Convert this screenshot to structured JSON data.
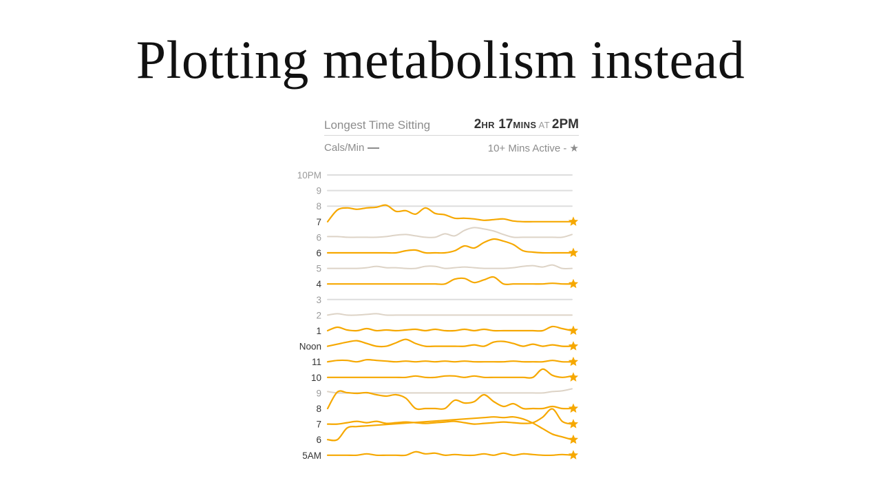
{
  "slide": {
    "title": "Plotting metabolism instead"
  },
  "header": {
    "longest_label": "Longest Time Sitting",
    "longest_value_hr": "2",
    "longest_unit_hr": "HR",
    "longest_value_min": "17",
    "longest_unit_min": "MINS",
    "longest_at": "AT",
    "longest_time": "2PM",
    "cals_label": "Cals/Min",
    "active_label": "10+ Mins Active -",
    "active_star": "★"
  },
  "colors": {
    "active": "#f6a800",
    "inactive": "#ddd3c6",
    "empty": "#dddddd",
    "grid_label_muted": "#9a9a9a",
    "grid_label_dark": "#333333"
  },
  "chart_data": {
    "type": "line",
    "title": "",
    "xlabel": "",
    "ylabel": "",
    "note": "",
    "x": [
      0,
      4,
      8,
      12,
      16,
      20,
      24,
      28,
      32,
      36,
      40,
      44,
      48,
      52,
      56,
      60,
      64,
      68,
      72,
      76,
      80,
      84,
      88,
      92,
      96,
      100
    ],
    "series": [
      {
        "label": "10PM",
        "status": "empty",
        "star": false,
        "values": [
          0,
          0,
          0,
          0,
          0,
          0,
          0,
          0,
          0,
          0,
          0,
          0,
          0,
          0,
          0,
          0,
          0,
          0,
          0,
          0,
          0,
          0,
          0,
          0,
          0,
          0
        ]
      },
      {
        "label": "9",
        "status": "empty",
        "star": false,
        "values": [
          0,
          0,
          0,
          0,
          0,
          0,
          0,
          0,
          0,
          0,
          0,
          0,
          0,
          0,
          0,
          0,
          0,
          0,
          0,
          0,
          0,
          0,
          0,
          0,
          0,
          0
        ]
      },
      {
        "label": "8",
        "status": "empty",
        "star": false,
        "values": [
          0,
          0,
          0,
          0,
          0,
          0,
          0,
          0,
          0,
          0,
          0,
          0,
          0,
          0,
          0,
          0,
          0,
          0,
          0,
          0,
          0,
          0,
          0,
          0,
          0,
          0
        ]
      },
      {
        "label": "7",
        "status": "active",
        "star": true,
        "values": [
          0,
          17,
          20,
          18,
          20,
          21,
          24,
          15,
          16,
          11,
          20,
          12,
          10,
          5,
          5,
          4,
          2,
          3,
          4,
          1,
          0,
          0,
          0,
          0,
          0,
          0
        ]
      },
      {
        "label": "6",
        "status": "inactive",
        "star": false,
        "values": [
          1,
          1,
          0,
          0,
          0,
          0,
          1,
          3,
          4,
          2,
          0,
          0,
          5,
          2,
          10,
          14,
          12,
          9,
          4,
          0,
          0,
          0,
          0,
          0,
          0,
          4
        ]
      },
      {
        "label": "6",
        "status": "active",
        "star": true,
        "values": [
          0,
          0,
          0,
          0,
          0,
          0,
          0,
          0,
          3,
          4,
          0,
          0,
          0,
          3,
          10,
          7,
          15,
          20,
          17,
          12,
          3,
          1,
          0,
          0,
          0,
          0
        ]
      },
      {
        "label": "5",
        "status": "inactive",
        "star": false,
        "values": [
          0,
          0,
          0,
          0,
          1,
          3,
          1,
          1,
          0,
          0,
          3,
          3,
          0,
          1,
          2,
          1,
          0,
          0,
          0,
          1,
          3,
          4,
          2,
          5,
          0,
          0
        ]
      },
      {
        "label": "4",
        "status": "active",
        "star": true,
        "values": [
          0,
          0,
          0,
          0,
          0,
          0,
          0,
          0,
          0,
          0,
          0,
          0,
          0,
          7,
          8,
          2,
          6,
          10,
          0,
          0,
          0,
          0,
          0,
          1,
          0,
          0
        ]
      },
      {
        "label": "3",
        "status": "empty",
        "star": false,
        "values": [
          0,
          0,
          0,
          0,
          0,
          0,
          0,
          0,
          0,
          0,
          0,
          0,
          0,
          0,
          0,
          0,
          0,
          0,
          0,
          0,
          0,
          0,
          0,
          0,
          0,
          0
        ]
      },
      {
        "label": "2",
        "status": "inactive",
        "star": false,
        "values": [
          0,
          2,
          0,
          0,
          1,
          2,
          0,
          0,
          0,
          0,
          0,
          0,
          0,
          0,
          0,
          0,
          0,
          0,
          0,
          0,
          0,
          0,
          0,
          0,
          0,
          0
        ]
      },
      {
        "label": "1",
        "status": "active",
        "star": true,
        "values": [
          0,
          5,
          1,
          0,
          3,
          0,
          1,
          0,
          1,
          2,
          0,
          2,
          0,
          0,
          2,
          0,
          2,
          0,
          0,
          0,
          0,
          0,
          0,
          6,
          3,
          0
        ]
      },
      {
        "label": "Noon",
        "status": "active",
        "star": true,
        "values": [
          0,
          3,
          6,
          8,
          4,
          0,
          0,
          5,
          10,
          4,
          0,
          0,
          0,
          0,
          0,
          2,
          0,
          6,
          7,
          4,
          0,
          3,
          0,
          2,
          0,
          0
        ]
      },
      {
        "label": "11",
        "status": "active",
        "star": true,
        "values": [
          0,
          2,
          2,
          0,
          3,
          2,
          1,
          0,
          1,
          0,
          1,
          0,
          1,
          0,
          1,
          0,
          0,
          0,
          0,
          1,
          0,
          0,
          0,
          2,
          0,
          0
        ]
      },
      {
        "label": "10",
        "status": "active",
        "star": true,
        "values": [
          0,
          0,
          0,
          0,
          0,
          0,
          0,
          0,
          0,
          2,
          0,
          0,
          2,
          2,
          0,
          2,
          0,
          0,
          0,
          0,
          0,
          0,
          12,
          3,
          0,
          2
        ]
      },
      {
        "label": "9",
        "status": "inactive",
        "star": false,
        "values": [
          2,
          0,
          0,
          0,
          0,
          0,
          0,
          0,
          0,
          0,
          0,
          0,
          0,
          0,
          0,
          0,
          0,
          0,
          0,
          0,
          0,
          0,
          0,
          2,
          3,
          6
        ]
      },
      {
        "label": "8",
        "status": "active",
        "star": true,
        "values": [
          0,
          24,
          23,
          22,
          23,
          20,
          18,
          20,
          15,
          0,
          0,
          0,
          0,
          12,
          8,
          10,
          20,
          10,
          3,
          7,
          0,
          0,
          0,
          3,
          0,
          0
        ]
      },
      {
        "label": "7",
        "status": "active",
        "star": true,
        "values": [
          0,
          0,
          2,
          4,
          2,
          4,
          1,
          2,
          3,
          2,
          1,
          2,
          3,
          4,
          2,
          0,
          1,
          2,
          3,
          2,
          1,
          2,
          10,
          22,
          4,
          0
        ]
      },
      {
        "label": "6",
        "status": "active",
        "star": true,
        "values": [
          0,
          0,
          17,
          19,
          20,
          21,
          22,
          23,
          24,
          25,
          26,
          27,
          28,
          29,
          30,
          31,
          32,
          33,
          32,
          33,
          30,
          24,
          16,
          8,
          4,
          0
        ]
      },
      {
        "label": "5AM",
        "status": "active",
        "star": true,
        "values": [
          0,
          0,
          0,
          0,
          2,
          0,
          0,
          0,
          0,
          5,
          2,
          3,
          0,
          1,
          0,
          0,
          2,
          0,
          3,
          0,
          2,
          1,
          0,
          0,
          1,
          0
        ]
      }
    ]
  }
}
